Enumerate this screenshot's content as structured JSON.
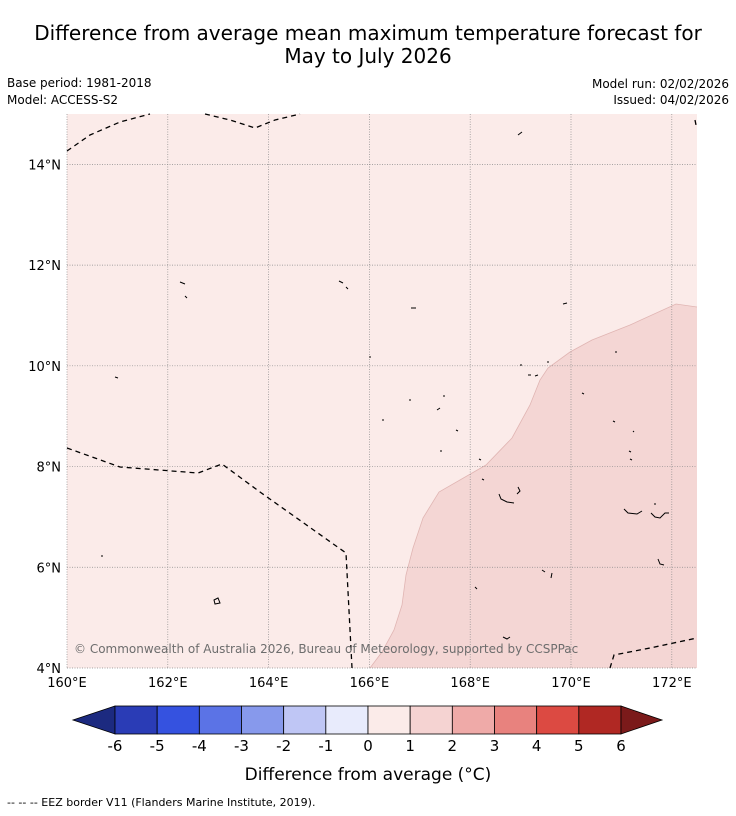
{
  "header": {
    "title": "Difference from average mean maximum temperature forecast for\nMay to July 2026",
    "base_period": "Base period: 1981-2018",
    "model": "Model: ACCESS-S2",
    "model_run": "Model run: 02/02/2026",
    "issued": "Issued: 04/02/2026"
  },
  "map": {
    "lon_range": [
      160,
      172.5
    ],
    "lat_range": [
      4,
      15
    ],
    "lon_ticks": [
      160,
      162,
      164,
      166,
      168,
      170,
      172
    ],
    "lat_ticks": [
      4,
      6,
      8,
      10,
      12,
      14
    ],
    "lon_labels": [
      "160°E",
      "162°E",
      "164°E",
      "166°E",
      "168°E",
      "170°E",
      "172°E"
    ],
    "lat_labels": [
      "4°N",
      "6°N",
      "8°N",
      "10°N",
      "12°N",
      "14°N"
    ],
    "background_color": "#fbebe9",
    "anomaly_zone_color": "#f4d6d4",
    "attribution": "© Commonwealth of Australia 2026, Bureau of Meteorology, supported by CCSPPac"
  },
  "colorbar": {
    "labels": [
      "-6",
      "-5",
      "-4",
      "-3",
      "-2",
      "-1",
      "0",
      "1",
      "2",
      "3",
      "4",
      "5",
      "6"
    ],
    "colors": [
      "#2a3cb6",
      "#3552e0",
      "#5b73e6",
      "#8799ec",
      "#bfc6f5",
      "#e8ebfc",
      "#fbebe9",
      "#f5d3d2",
      "#efaaa8",
      "#e8827e",
      "#dc4a42",
      "#b02823"
    ],
    "under_color": "#1c2a80",
    "over_color": "#7b1a1a",
    "label": "Difference from average (°C)"
  },
  "footer": {
    "legend_text": "--  --  -- EEZ border V11 (Flanders Marine Institute, 2019)."
  }
}
